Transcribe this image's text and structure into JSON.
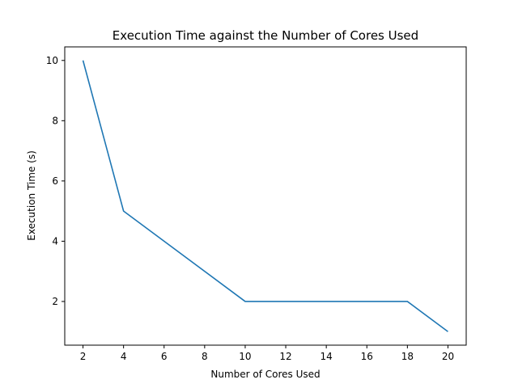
{
  "chart_data": {
    "type": "line",
    "title": "Execution Time against the Number of Cores Used",
    "xlabel": "Number of Cores Used",
    "ylabel": "Execution Time (s)",
    "xlim": [
      1.1,
      20.9
    ],
    "ylim": [
      0.55,
      10.45
    ],
    "xticks": [
      2,
      4,
      6,
      8,
      10,
      12,
      14,
      16,
      18,
      20
    ],
    "yticks": [
      2,
      4,
      6,
      8,
      10
    ],
    "grid": false,
    "series": [
      {
        "color": "#1f77b4",
        "x": [
          2,
          4,
          10,
          18,
          20
        ],
        "y": [
          10,
          5,
          2,
          2,
          1
        ]
      }
    ]
  }
}
